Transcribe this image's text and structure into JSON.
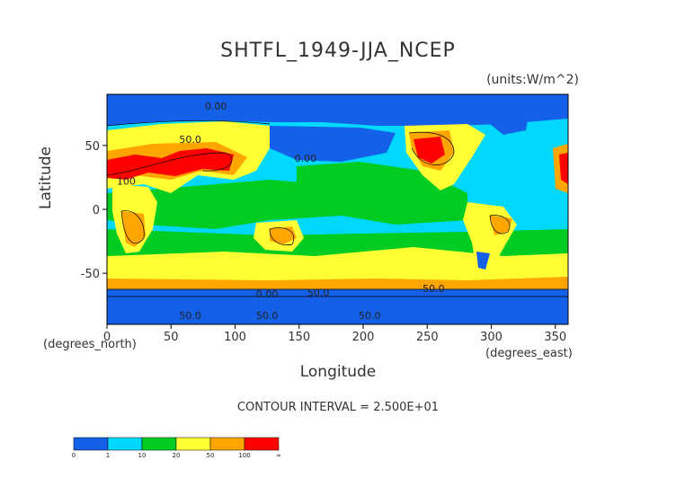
{
  "chart_data": {
    "type": "heatmap",
    "title": "SHTFL_1949-JJA_NCEP",
    "units": "(units:W/m^2)",
    "xlabel": "Longitude",
    "ylabel": "Latitude",
    "x_units": "(degrees_east)",
    "y_units": "(degrees_north)",
    "xlim": [
      0,
      360
    ],
    "ylim": [
      -90,
      90
    ],
    "x_ticks": [
      0,
      50,
      100,
      150,
      200,
      250,
      300,
      350
    ],
    "y_ticks": [
      50,
      0,
      -50
    ],
    "contour_interval_text": "CONTOUR INTERVAL = 2.500E+01",
    "contour_labels": [
      "0.00",
      "50.0",
      "100",
      "0.00",
      "0.00",
      "50.0",
      "50.0",
      "50.0",
      "50.0",
      "50.0"
    ],
    "colorbar": {
      "labels": [
        "0",
        "1",
        "10",
        "20",
        "50",
        "100",
        "∞"
      ],
      "colors": [
        "#1560e8",
        "#00d8ff",
        "#00cc22",
        "#ffff33",
        "#ffa500",
        "#ff0000"
      ]
    }
  }
}
